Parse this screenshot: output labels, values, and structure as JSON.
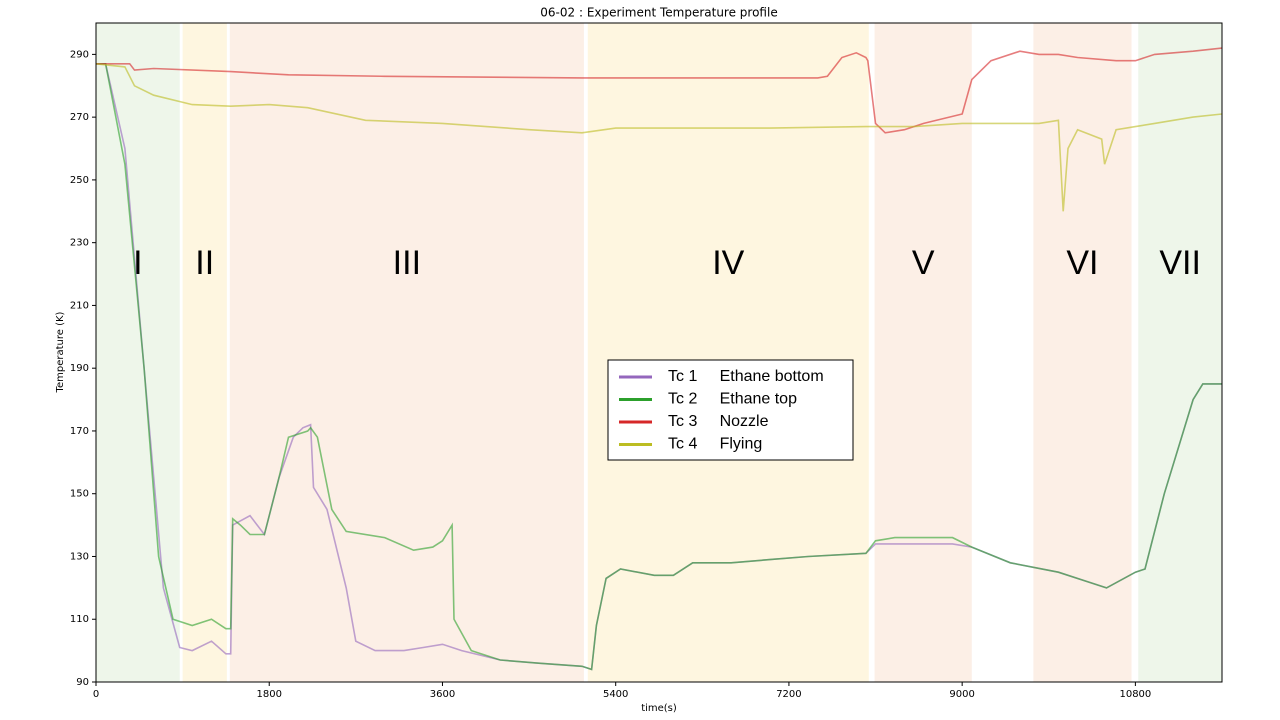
{
  "chart_data": {
    "type": "line",
    "title": "06-02 : Experiment Temperature profile",
    "x_label": "time(s)",
    "y_label": "Temperature (K)",
    "xlim": [
      0,
      11700
    ],
    "ylim": [
      90,
      300
    ],
    "xticks": [
      0,
      1800,
      3600,
      5400,
      7200,
      9000,
      10800
    ],
    "yticks": [
      90,
      110,
      130,
      150,
      170,
      190,
      210,
      230,
      250,
      270,
      290
    ],
    "regions": [
      {
        "label": "I",
        "start": 0,
        "end": 870,
        "color": "#eef6ea"
      },
      {
        "label": "II",
        "start": 900,
        "end": 1360,
        "color": "#fef6e0"
      },
      {
        "label": "III",
        "start": 1390,
        "end": 5070,
        "color": "#fcefe6"
      },
      {
        "label": "IV",
        "start": 5110,
        "end": 8030,
        "color": "#fef6e0"
      },
      {
        "label": "V",
        "start": 8090,
        "end": 9100,
        "color": "#fcefe6"
      },
      {
        "label": "VI",
        "start": 9740,
        "end": 10760,
        "color": "#fcefe6"
      },
      {
        "label": "VII",
        "start": 10830,
        "end": 11700,
        "color": "#eef6ea"
      }
    ],
    "series": [
      {
        "name": "Tc 1     Ethane bottom",
        "color": "#9467bd",
        "x": [
          0,
          100,
          300,
          500,
          700,
          870,
          1000,
          1200,
          1350,
          1400,
          1420,
          1600,
          1750,
          1900,
          2050,
          2150,
          2230,
          2260,
          2400,
          2600,
          2700,
          2900,
          3200,
          3400,
          3600,
          3800,
          4200,
          4600,
          5050,
          5150,
          5200,
          5300,
          5450,
          5800,
          6000,
          6200,
          6600,
          7000,
          7400,
          8000,
          8100,
          8300,
          8900,
          9100,
          9500,
          10000,
          10300,
          10500,
          10800,
          10900,
          11100,
          11400,
          11500,
          11700
        ],
        "values": [
          287,
          287,
          260,
          190,
          120,
          101,
          100,
          103,
          99,
          99,
          140,
          143,
          137,
          155,
          168,
          171,
          172,
          152,
          145,
          120,
          103,
          100,
          100,
          101,
          102,
          100,
          97,
          96,
          95,
          94,
          108,
          123,
          126,
          124,
          124,
          128,
          128,
          129,
          130,
          131,
          134,
          134,
          134,
          133,
          128,
          125,
          122,
          120,
          125,
          126,
          150,
          180,
          185,
          185
        ]
      },
      {
        "name": "Tc 2     Ethane top",
        "color": "#2ca02c",
        "x": [
          0,
          100,
          300,
          500,
          650,
          800,
          1000,
          1200,
          1350,
          1400,
          1420,
          1500,
          1600,
          1750,
          1900,
          2000,
          2200,
          2230,
          2300,
          2450,
          2600,
          3000,
          3300,
          3500,
          3600,
          3700,
          3720,
          3900,
          4200,
          4600,
          5050,
          5150,
          5200,
          5300,
          5450,
          5800,
          6000,
          6200,
          6600,
          7000,
          7400,
          8000,
          8100,
          8300,
          8900,
          9100,
          9500,
          10000,
          10300,
          10500,
          10800,
          10900,
          11100,
          11400,
          11500,
          11700
        ],
        "values": [
          287,
          287,
          255,
          190,
          130,
          110,
          108,
          110,
          107,
          107,
          142,
          140,
          137,
          137,
          155,
          168,
          170,
          171,
          168,
          145,
          138,
          136,
          132,
          133,
          135,
          140,
          110,
          100,
          97,
          96,
          95,
          94,
          108,
          123,
          126,
          124,
          124,
          128,
          128,
          129,
          130,
          131,
          135,
          136,
          136,
          133,
          128,
          125,
          122,
          120,
          125,
          126,
          150,
          180,
          185,
          185
        ]
      },
      {
        "name": "Tc 3     Nozzle",
        "color": "#d62728",
        "x": [
          0,
          350,
          400,
          600,
          1400,
          2000,
          3000,
          5050,
          6000,
          7500,
          7600,
          7750,
          7900,
          8000,
          8020,
          8100,
          8200,
          8400,
          8600,
          9000,
          9100,
          9300,
          9600,
          9800,
          10000,
          10200,
          10600,
          10800,
          11000,
          11400,
          11700
        ],
        "values": [
          287,
          287,
          285,
          285.5,
          284.5,
          283.5,
          283,
          282.5,
          282.5,
          282.5,
          283,
          289,
          290.5,
          289,
          288,
          268,
          265,
          266,
          268,
          271,
          282,
          288,
          291,
          290,
          290,
          289,
          288,
          288,
          290,
          291,
          292
        ]
      },
      {
        "name": "Tc 4     Flying",
        "color": "#bcbd22",
        "x": [
          0,
          300,
          400,
          600,
          1000,
          1400,
          1800,
          2200,
          2800,
          3600,
          4500,
          5050,
          5400,
          7000,
          8000,
          8500,
          9000,
          9500,
          9800,
          10000,
          10050,
          10100,
          10200,
          10450,
          10480,
          10600,
          10800,
          11000,
          11400,
          11700
        ],
        "values": [
          287,
          286,
          280,
          277,
          274,
          273.5,
          274,
          273,
          269,
          268,
          266,
          265,
          266.5,
          266.5,
          267,
          267,
          268,
          268,
          268,
          269,
          240,
          260,
          266,
          263,
          255,
          266,
          267,
          268,
          270,
          271
        ]
      }
    ]
  }
}
